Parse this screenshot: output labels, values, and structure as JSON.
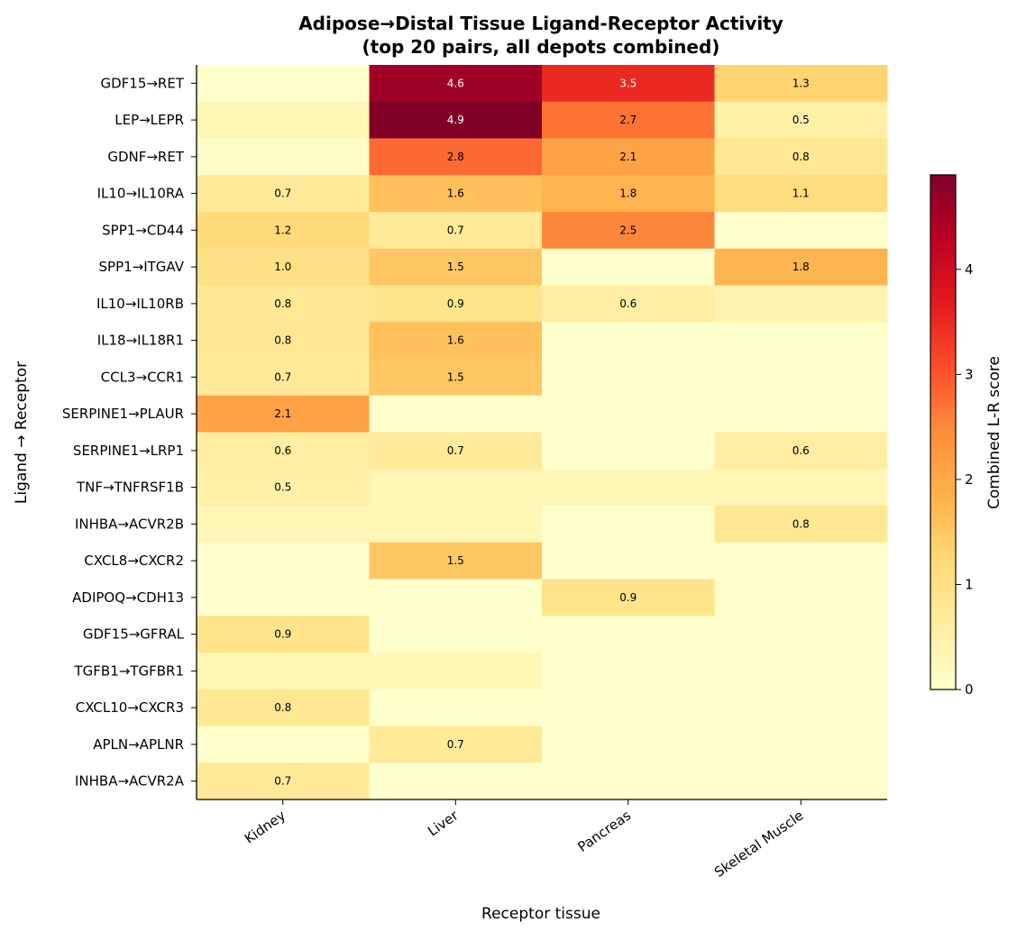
{
  "chart_data": {
    "type": "heatmap",
    "title": "Adipose→Distal Tissue Ligand-Receptor Activity",
    "subtitle": "(top 20 pairs, all depots combined)",
    "xlabel": "Receptor tissue",
    "ylabel": "Ligand → Receptor",
    "colorbar_label": "Combined L-R score",
    "colorbar_ticks": [
      "0",
      "1",
      "2",
      "3",
      "4"
    ],
    "colorbar_range": [
      0,
      4.9
    ],
    "colormap": "YlOrRd",
    "columns": [
      "Kidney",
      "Liver",
      "Pancreas",
      "Skeletal Muscle"
    ],
    "rows": [
      "GDF15→RET",
      "LEP→LEPR",
      "GDNF→RET",
      "IL10→IL10RA",
      "SPP1→CD44",
      "SPP1→ITGAV",
      "IL10→IL10RB",
      "IL18→IL18R1",
      "CCL3→CCR1",
      "SERPINE1→PLAUR",
      "SERPINE1→LRP1",
      "TNF→TNFRSF1B",
      "INHBA→ACVR2B",
      "CXCL8→CXCR2",
      "ADIPOQ→CDH13",
      "GDF15→GFRAL",
      "TGFB1→TGFBR1",
      "CXCL10→CXCR3",
      "APLN→APLNR",
      "INHBA→ACVR2A"
    ],
    "values": [
      [
        0.0,
        4.6,
        3.5,
        1.3
      ],
      [
        0.3,
        4.9,
        2.7,
        0.5
      ],
      [
        0.1,
        2.8,
        2.1,
        0.8
      ],
      [
        0.7,
        1.6,
        1.8,
        1.1
      ],
      [
        1.2,
        0.7,
        2.5,
        0.0
      ],
      [
        1.0,
        1.5,
        0.0,
        1.8
      ],
      [
        0.8,
        0.9,
        0.6,
        0.4
      ],
      [
        0.8,
        1.6,
        0.0,
        0.0
      ],
      [
        0.7,
        1.5,
        0.0,
        0.0
      ],
      [
        2.1,
        0.0,
        0.0,
        0.0
      ],
      [
        0.6,
        0.7,
        0.0,
        0.6
      ],
      [
        0.5,
        0.3,
        0.3,
        0.3
      ],
      [
        0.3,
        0.3,
        0.0,
        0.8
      ],
      [
        0.0,
        1.5,
        0.0,
        0.0
      ],
      [
        0.0,
        0.0,
        0.9,
        0.0
      ],
      [
        0.9,
        0.0,
        0.0,
        0.0
      ],
      [
        0.3,
        0.3,
        0.0,
        0.0
      ],
      [
        0.8,
        0.0,
        0.0,
        0.0
      ],
      [
        0.0,
        0.7,
        0.0,
        0.0
      ],
      [
        0.7,
        0.0,
        0.0,
        0.0
      ]
    ],
    "annotations": [
      [
        "",
        "4.6",
        "3.5",
        "1.3"
      ],
      [
        "",
        "4.9",
        "2.7",
        "0.5"
      ],
      [
        "",
        "2.8",
        "2.1",
        "0.8"
      ],
      [
        "0.7",
        "1.6",
        "1.8",
        "1.1"
      ],
      [
        "1.2",
        "0.7",
        "2.5",
        ""
      ],
      [
        "1.0",
        "1.5",
        "",
        "1.8"
      ],
      [
        "0.8",
        "0.9",
        "0.6",
        ""
      ],
      [
        "0.8",
        "1.6",
        "",
        ""
      ],
      [
        "0.7",
        "1.5",
        "",
        ""
      ],
      [
        "2.1",
        "",
        "",
        ""
      ],
      [
        "0.6",
        "0.7",
        "",
        "0.6"
      ],
      [
        "0.5",
        "",
        "",
        ""
      ],
      [
        "",
        "",
        "",
        "0.8"
      ],
      [
        "",
        "1.5",
        "",
        ""
      ],
      [
        "",
        "",
        "0.9",
        ""
      ],
      [
        "0.9",
        "",
        "",
        ""
      ],
      [
        "",
        "",
        "",
        ""
      ],
      [
        "0.8",
        "",
        "",
        ""
      ],
      [
        "",
        "0.7",
        "",
        ""
      ],
      [
        "0.7",
        "",
        "",
        ""
      ]
    ]
  }
}
